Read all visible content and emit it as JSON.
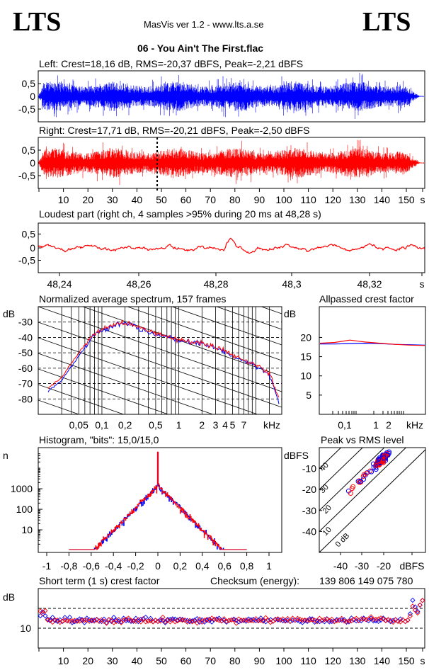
{
  "header": {
    "logo_left": "LTS",
    "logo_right": "LTS",
    "app": "MasVis ver 1.2 - www.lts.a.se",
    "file": "06 - You Ain't The First.flac"
  },
  "colors": {
    "left": "#0000ff",
    "right": "#ff0000",
    "grid": "#000000",
    "background": "#ffffff"
  },
  "panels": {
    "left_label": "Left: Crest=18,16 dB, RMS=-20,37 dBFS, Peak=-2,21 dBFS",
    "right_label": "Right: Crest=17,71 dB, RMS=-20,21 dBFS, Peak=-2,50 dBFS",
    "loudest_label": "Loudest part (right ch, 4 samples >95% during 20 ms at 48,28 s)",
    "spectrum_label": "Normalized average spectrum, 157 frames",
    "allpass_label": "Allpassed crest factor",
    "histogram_label": "Histogram, \"bits\": 15,0/15,0",
    "peakrms_label": "Peak vs RMS level",
    "shortcrest_label": "Short term (1 s) crest factor",
    "checksum_label": "Checksum (energy):",
    "checksum_value": "139 806 149 075 780"
  },
  "chart_data": [
    {
      "id": "waveform-left",
      "type": "area",
      "series": [
        {
          "name": "Left",
          "color": "#0000ff"
        }
      ],
      "x_range": [
        0,
        157
      ],
      "ylim": [
        -1,
        1
      ],
      "y_ticks": [
        "0,5",
        "0",
        "-0,5"
      ]
    },
    {
      "id": "waveform-right",
      "type": "area",
      "series": [
        {
          "name": "Right",
          "color": "#ff0000"
        }
      ],
      "x_range": [
        0,
        157
      ],
      "ylim": [
        -1,
        1
      ],
      "y_ticks": [
        "0,5",
        "0",
        "-0,5"
      ],
      "marker_time_s": 48.28,
      "x_ticks": [
        "10",
        "20",
        "30",
        "40",
        "50",
        "60",
        "70",
        "80",
        "90",
        "100",
        "110",
        "120",
        "130",
        "140",
        "150",
        "s"
      ]
    },
    {
      "id": "loudest-part",
      "type": "line",
      "series": [
        {
          "name": "Right",
          "color": "#ff0000"
        }
      ],
      "x_range": [
        48.232,
        48.332
      ],
      "ylim": [
        -1,
        1
      ],
      "y_ticks": [
        "0,5",
        "0",
        "-0,5"
      ],
      "x_ticks": [
        "48,24",
        "48,26",
        "48,28",
        "48,3",
        "48,32",
        "s"
      ]
    },
    {
      "id": "spectrum",
      "type": "line",
      "ylabel": "dB",
      "ylim": [
        -90,
        -20
      ],
      "y_ticks": [
        "-30",
        "-40",
        "-50",
        "-60",
        "-70",
        "-80"
      ],
      "x_ticks": [
        "0,05",
        "0,1",
        "0,2",
        "0,5",
        "1",
        "2",
        "3",
        "4",
        "5",
        "7",
        "kHz"
      ],
      "x_khz": [
        0.02,
        0.03,
        0.05,
        0.08,
        0.1,
        0.15,
        0.2,
        0.3,
        0.5,
        1,
        2,
        3,
        5,
        7,
        10,
        15,
        20
      ],
      "series": [
        {
          "name": "Left",
          "color": "#0000ff",
          "values": [
            -75,
            -68,
            -52,
            -38,
            -36,
            -32,
            -30,
            -34,
            -38,
            -42,
            -44,
            -47,
            -52,
            -55,
            -58,
            -64,
            -82
          ]
        },
        {
          "name": "Right",
          "color": "#ff0000",
          "values": [
            -73,
            -66,
            -50,
            -37,
            -35,
            -31,
            -30,
            -33,
            -37,
            -41,
            -44,
            -46,
            -51,
            -55,
            -58,
            -63,
            -80
          ]
        }
      ]
    },
    {
      "id": "allpass-crest",
      "type": "line",
      "ylabel": "dB",
      "ylim": [
        0,
        28
      ],
      "y_ticks": [
        "20",
        "15",
        "10",
        "5"
      ],
      "x_ticks": [
        "0,1",
        "1",
        "2",
        "kHz"
      ],
      "series": [
        {
          "name": "Left",
          "color": "#0000ff",
          "values": [
            18.3,
            18.3,
            18.4,
            18.5,
            18.4,
            18.2,
            18.1,
            18.0
          ]
        },
        {
          "name": "Right",
          "color": "#ff0000",
          "values": [
            18.5,
            18.7,
            19.3,
            18.8,
            18.5,
            18.2,
            18.0,
            17.9
          ]
        }
      ]
    },
    {
      "id": "histogram",
      "type": "line",
      "ylabel": "n",
      "ylim_log": [
        1,
        100000
      ],
      "y_ticks": [
        "1000",
        "100",
        "10"
      ],
      "x_ticks": [
        "-1",
        "-0,8",
        "-0,6",
        "-0,4",
        "-0,2",
        "0",
        "0,2",
        "0,4",
        "0,6",
        "0,8",
        "1"
      ]
    },
    {
      "id": "peak-vs-rms",
      "type": "scatter",
      "ylabel": "dBFS",
      "xlim": [
        -50,
        0
      ],
      "ylim": [
        -50,
        0
      ],
      "y_ticks": [
        "-10",
        "-20",
        "-30",
        "-40"
      ],
      "x_ticks": [
        "-40",
        "-30",
        "-20",
        "dBFS"
      ],
      "diagonal_labels": [
        "40",
        "30",
        "20",
        "10",
        "0 dB"
      ]
    },
    {
      "id": "short-term-crest",
      "type": "scatter",
      "ylabel": "dB",
      "ylim": [
        0,
        30
      ],
      "y_ticks": [
        "10"
      ],
      "x_range": [
        0,
        157
      ],
      "x_ticks": [
        "10",
        "20",
        "30",
        "40",
        "50",
        "60",
        "70",
        "80",
        "90",
        "100",
        "110",
        "120",
        "130",
        "140",
        "150",
        "s"
      ]
    }
  ]
}
